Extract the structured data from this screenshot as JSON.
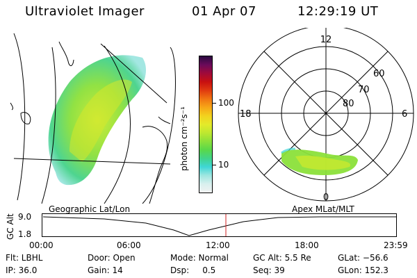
{
  "header": {
    "title": "Ultraviolet Imager",
    "date": "01 Apr 07",
    "time": "12:29:19 UT"
  },
  "colorbar": {
    "label": "photon cm⁻²s⁻¹",
    "ticks": [
      "100",
      "10"
    ],
    "scale": "log",
    "colors": [
      "#f2f2f2",
      "#d8f0ee",
      "#9ee6e0",
      "#3fd6d6",
      "#41d48a",
      "#59d84a",
      "#8be03a",
      "#bde830",
      "#e4ea2a",
      "#f2d21e",
      "#f7a617",
      "#f07412",
      "#e03a10",
      "#c81010",
      "#a00a3a",
      "#6a0a5a",
      "#2a0a40"
    ]
  },
  "geo_panel": {
    "title": "Geographic Lat/Lon"
  },
  "polar_panel": {
    "title": "Apex MLat/MLT",
    "mlt_labels": [
      "12",
      "18",
      "6",
      "0"
    ],
    "mlat_labels": [
      "60",
      "70",
      "80"
    ]
  },
  "timeline": {
    "ylabel": "GC Alt",
    "yticks": [
      "9.0",
      "1.8"
    ],
    "xticks": [
      "00:00",
      "06:00",
      "12:00",
      "18:00",
      "23:59"
    ],
    "marker_color": "#d02020"
  },
  "footer": {
    "col1": [
      "Flt: LBHL",
      "IP: 36.0"
    ],
    "col2": [
      "Door: Open",
      "Gain: 14"
    ],
    "col3": [
      "Mode: Normal",
      "Dsp:     0.5"
    ],
    "col4": [
      "GC Alt: 5.5 Re",
      "Seq: 39"
    ],
    "col5": [
      "GLat: −56.6",
      "GLon: 152.3"
    ]
  }
}
